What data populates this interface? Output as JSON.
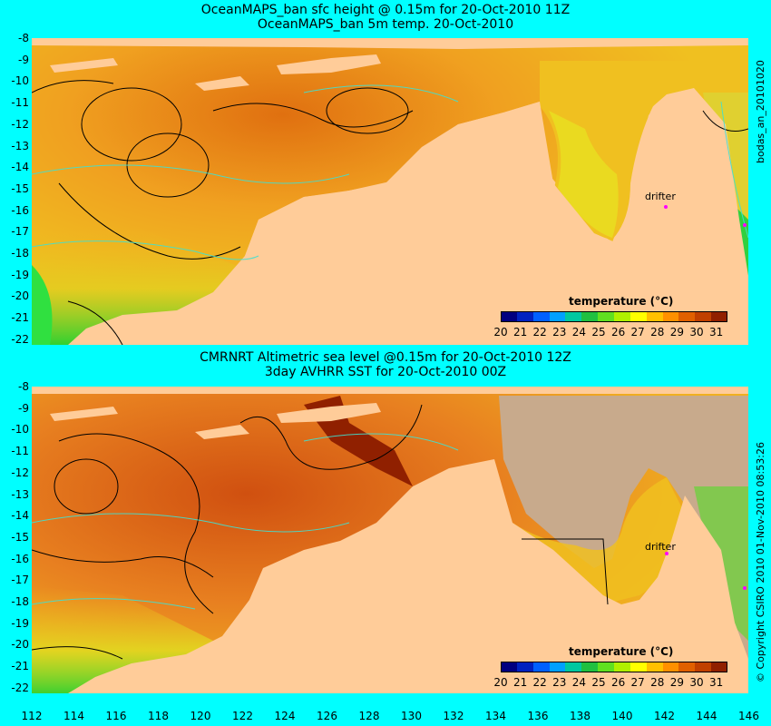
{
  "top_panel": {
    "title_line1": "OceanMAPS_ban sfc height @ 0.15m for 20-Oct-2010 11Z",
    "title_line2": "OceanMAPS_ban 5m temp. 20-Oct-2010",
    "side_label": "bodas_an_20101020",
    "drifter_label": "drifter"
  },
  "bottom_panel": {
    "title_line1": "CMRNRT Altimetric sea level  @0.15m  for 20-Oct-2010 12Z",
    "title_line2": "3day AVHRR SST for 20-Oct-2010 00Z",
    "side_label": "© Copyright CSIRO 2010   01-Nov-2010 08:53:26",
    "drifter_label": "drifter"
  },
  "colorbar": {
    "title": "temperature (°C)",
    "ticks": [
      "20",
      "21",
      "22",
      "23",
      "24",
      "25",
      "26",
      "27",
      "28",
      "29",
      "30",
      "31"
    ],
    "colors": [
      "#000080",
      "#0022c0",
      "#0060ff",
      "#00a0ff",
      "#00c8a0",
      "#20c040",
      "#60e020",
      "#b0f000",
      "#ffff00",
      "#ffc000",
      "#ff9000",
      "#e06000",
      "#c04000",
      "#902000"
    ]
  },
  "axes": {
    "y_ticks": [
      "-8",
      "-9",
      "-10",
      "-11",
      "-12",
      "-13",
      "-14",
      "-15",
      "-16",
      "-17",
      "-18",
      "-19",
      "-20",
      "-21",
      "-22"
    ],
    "x_ticks": [
      "112",
      "114",
      "116",
      "118",
      "120",
      "122",
      "124",
      "126",
      "128",
      "130",
      "132",
      "134",
      "136",
      "138",
      "140",
      "142",
      "144",
      "146"
    ]
  },
  "colors": {
    "land": "#ffcc99",
    "background": "#00ffff",
    "missing": "#c8aa8c",
    "contour": "#40e0d0"
  }
}
